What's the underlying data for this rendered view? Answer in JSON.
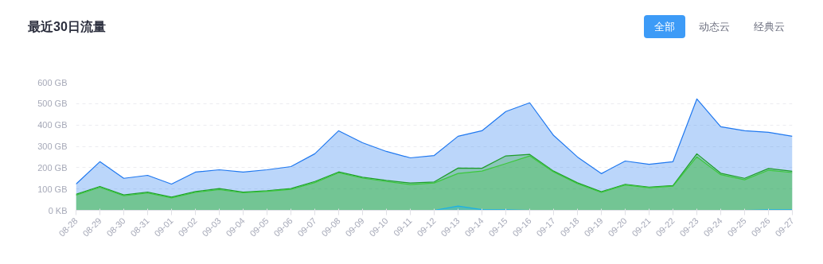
{
  "chart_data": {
    "type": "area",
    "title": "最近30日流量",
    "annotations": [
      "全部",
      "动态云",
      "经典云"
    ],
    "categories": [
      "08-28",
      "08-29",
      "08-30",
      "08-31",
      "09-01",
      "09-02",
      "09-03",
      "09-04",
      "09-05",
      "09-06",
      "09-07",
      "09-08",
      "09-09",
      "09-10",
      "09-11",
      "09-12",
      "09-13",
      "09-14",
      "09-15",
      "09-16",
      "09-17",
      "09-18",
      "09-19",
      "09-20",
      "09-21",
      "09-22",
      "09-23",
      "09-24",
      "09-25",
      "09-26",
      "09-27"
    ],
    "series": [
      {
        "color": "#1f78f0",
        "values": [
          123,
          228,
          150,
          164,
          123,
          179,
          190,
          179,
          190,
          205,
          265,
          373,
          317,
          276,
          246,
          257,
          347,
          373,
          463,
          504,
          351,
          250,
          172,
          231,
          216,
          228,
          522,
          392,
          373,
          366,
          347
        ]
      },
      {
        "color": "#1e9e2a",
        "values": [
          75,
          112,
          72,
          85,
          62,
          88,
          102,
          85,
          92,
          102,
          135,
          180,
          155,
          140,
          128,
          133,
          198,
          197,
          255,
          262,
          184,
          129,
          87,
          122,
          109,
          116,
          265,
          174,
          150,
          196,
          183
        ]
      },
      {
        "color": "#3cc83c",
        "values": [
          71,
          108,
          68,
          81,
          58,
          84,
          97,
          82,
          89,
          98,
          130,
          176,
          151,
          135,
          121,
          128,
          173,
          184,
          219,
          255,
          180,
          125,
          84,
          119,
          106,
          113,
          251,
          167,
          143,
          188,
          177
        ]
      },
      {
        "color": "#1ab0e8",
        "values": [
          0,
          0,
          0,
          0,
          0,
          0,
          0,
          0,
          0,
          0,
          0,
          0,
          0,
          0,
          0,
          0,
          20,
          3,
          2,
          0,
          0,
          0,
          0,
          0,
          0,
          0,
          0,
          0,
          0,
          2,
          2
        ]
      }
    ],
    "ylim": [
      0,
      600
    ],
    "yticks": [
      {
        "value": 0,
        "label": "0 KB"
      },
      {
        "value": 100,
        "label": "100 GB"
      },
      {
        "value": 200,
        "label": "200 GB"
      },
      {
        "value": 300,
        "label": "300 GB"
      },
      {
        "value": 400,
        "label": "400 GB"
      },
      {
        "value": 500,
        "label": "500 GB"
      },
      {
        "value": 600,
        "label": "600 GB"
      }
    ],
    "grid": "y"
  }
}
